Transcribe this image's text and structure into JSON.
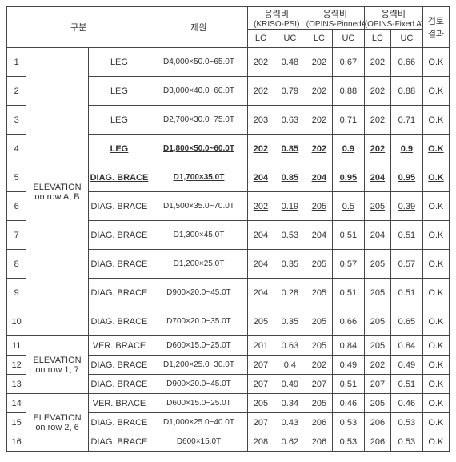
{
  "headers": {
    "gubun": "구분",
    "jewon": "제원",
    "r1_label": "응력비",
    "r1_sub": "(KRISO-PSI)",
    "r2_label": "응력비",
    "r2_sub": "(OPINS-PinnedATW)",
    "r3_label": "응력비",
    "r3_sub": "(OPINS-Fixed ATW)",
    "result": "검토\n결과",
    "lc": "LC",
    "uc": "UC"
  },
  "groups": {
    "g1": "ELEVATION\non row A, B",
    "g2": "ELEVATION\non row 1, 7",
    "g3": "ELEVATION\non row 2, 6"
  },
  "rows": [
    {
      "no": "1",
      "type": "LEG",
      "spec": "D4,000×50.0~65.0T",
      "a_lc": "202",
      "a_uc": "0.48",
      "b_lc": "202",
      "b_uc": "0.67",
      "c_lc": "202",
      "c_uc": "0.66",
      "res": "O.K",
      "tall": true
    },
    {
      "no": "2",
      "type": "LEG",
      "spec": "D3,000×40.0~60.0T",
      "a_lc": "202",
      "a_uc": "0.79",
      "b_lc": "202",
      "b_uc": "0.88",
      "c_lc": "202",
      "c_uc": "0.88",
      "res": "O.K",
      "tall": true
    },
    {
      "no": "3",
      "type": "LEG",
      "spec": "D2,700×30.0~75.0T",
      "a_lc": "203",
      "a_uc": "0.63",
      "b_lc": "202",
      "b_uc": "0.71",
      "c_lc": "202",
      "c_uc": "0.71",
      "res": "O.K",
      "tall": true
    },
    {
      "no": "4",
      "type": "LEG",
      "spec": "D1,800×50.0~60.0T",
      "a_lc": "202",
      "a_uc": "0.85",
      "b_lc": "202",
      "b_uc": "0.9",
      "c_lc": "202",
      "c_uc": "0.9",
      "res": "O.K",
      "bold": true,
      "tall": true
    },
    {
      "no": "5",
      "type": "DIAG. BRACE",
      "spec": "D1,700×35.0T",
      "a_lc": "204",
      "a_uc": "0.85",
      "b_lc": "204",
      "b_uc": "0.95",
      "c_lc": "204",
      "c_uc": "0.95",
      "res": "O.K",
      "bold": true,
      "tall": true
    },
    {
      "no": "6",
      "type": "DIAG. BRACE",
      "spec": "D1,500×35.0~70.0T",
      "a_lc": "202",
      "a_uc": "0.19",
      "b_lc": "205",
      "b_uc": "0.5",
      "c_lc": "205",
      "c_uc": "0.39",
      "res": "O.K",
      "underline": true,
      "tall": true
    },
    {
      "no": "7",
      "type": "DIAG. BRACE",
      "spec": "D1,300×45.0T",
      "a_lc": "204",
      "a_uc": "0.53",
      "b_lc": "204",
      "b_uc": "0.51",
      "c_lc": "204",
      "c_uc": "0.51",
      "res": "O.K",
      "tall": true
    },
    {
      "no": "8",
      "type": "DIAG. BRACE",
      "spec": "D1,200×25.0T",
      "a_lc": "204",
      "a_uc": "0.35",
      "b_lc": "205",
      "b_uc": "0.57",
      "c_lc": "205",
      "c_uc": "0.57",
      "res": "O.K",
      "tall": true
    },
    {
      "no": "9",
      "type": "DIAG. BRACE",
      "spec": "D900×20.0~45.0T",
      "a_lc": "204",
      "a_uc": "0.28",
      "b_lc": "205",
      "b_uc": "0.51",
      "c_lc": "205",
      "c_uc": "0.51",
      "res": "O.K",
      "tall": true
    },
    {
      "no": "10",
      "type": "DIAG. BRACE",
      "spec": "D700×20.0~35.0T",
      "a_lc": "205",
      "a_uc": "0.35",
      "b_lc": "205",
      "b_uc": "0.66",
      "c_lc": "205",
      "c_uc": "0.65",
      "res": "O.K",
      "tall": true
    },
    {
      "no": "11",
      "type": "VER. BRACE",
      "spec": "D600×15.0~25.0T",
      "a_lc": "201",
      "a_uc": "0.63",
      "b_lc": "205",
      "b_uc": "0.84",
      "c_lc": "205",
      "c_uc": "0.84",
      "res": "O.K"
    },
    {
      "no": "12",
      "type": "DIAG. BRACE",
      "spec": "D1,200×25.0~30.0T",
      "a_lc": "207",
      "a_uc": "0.4",
      "b_lc": "202",
      "b_uc": "0.49",
      "c_lc": "202",
      "c_uc": "0.49",
      "res": "O.K"
    },
    {
      "no": "13",
      "type": "DIAG. BRACE",
      "spec": "D900×20.0~45.0T",
      "a_lc": "207",
      "a_uc": "0.49",
      "b_lc": "207",
      "b_uc": "0.51",
      "c_lc": "207",
      "c_uc": "0.51",
      "res": "O.K"
    },
    {
      "no": "14",
      "type": "VER. BRACE",
      "spec": "D600×15.0~25.0T",
      "a_lc": "205",
      "a_uc": "0.34",
      "b_lc": "205",
      "b_uc": "0.46",
      "c_lc": "205",
      "c_uc": "0.46",
      "res": "O.K"
    },
    {
      "no": "15",
      "type": "DIAG. BRACE",
      "spec": "D1,000×25.0~40.0T",
      "a_lc": "207",
      "a_uc": "0.43",
      "b_lc": "206",
      "b_uc": "0.53",
      "c_lc": "206",
      "c_uc": "0.53",
      "res": "O.K"
    },
    {
      "no": "16",
      "type": "DIAG. BRACE",
      "spec": "D600×15.0T",
      "a_lc": "208",
      "a_uc": "0.62",
      "b_lc": "206",
      "b_uc": "0.53",
      "c_lc": "206",
      "c_uc": "0.53",
      "res": "O.K"
    }
  ],
  "style": {
    "tall_row_height": 36,
    "short_row_height": 24
  }
}
